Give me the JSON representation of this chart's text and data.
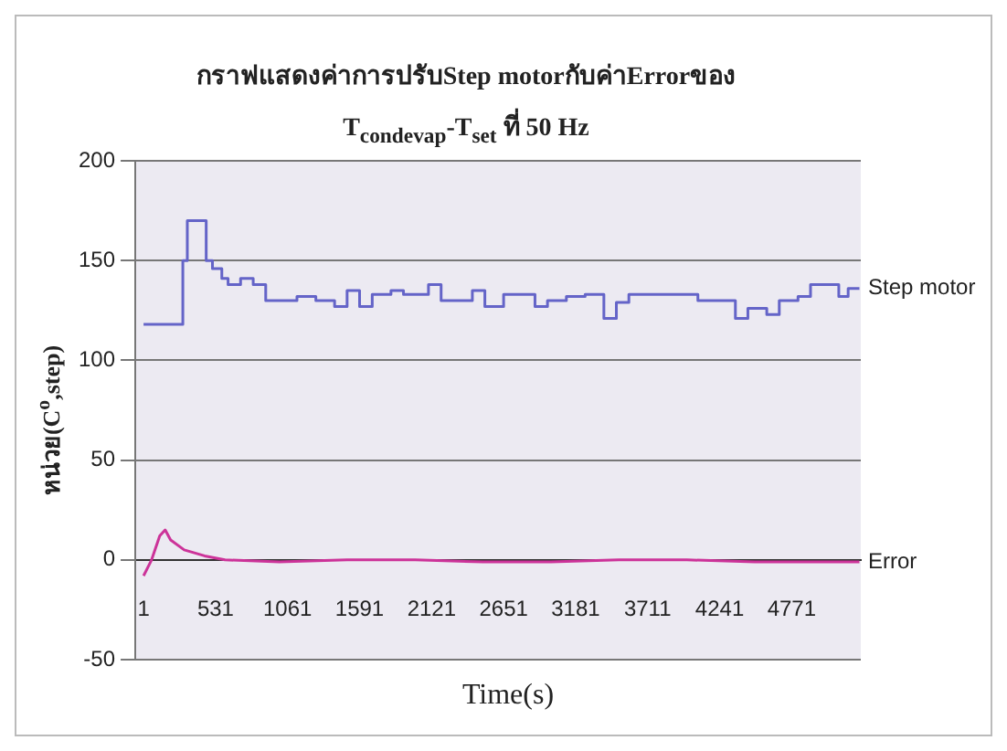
{
  "chart_data": {
    "type": "line",
    "title": "กราฟแสดงค่าการปรับStep motorกับค่าErrorของ",
    "subtitle": "T$_{condevap}$-T$_{set}$ ที่ 50 Hz",
    "xlabel": "Time(s)",
    "ylabel": "หน่วย(C$^{o}$,step)",
    "xlim": [
      -60,
      5280
    ],
    "xticks": [
      1,
      531,
      1061,
      1591,
      2121,
      2651,
      3181,
      3711,
      4241,
      4771
    ],
    "ylim": [
      -50,
      200
    ],
    "yticks": [
      -50,
      0,
      50,
      100,
      150,
      200
    ],
    "grid": "y",
    "legend": false,
    "series": [
      {
        "name": "Step motor",
        "type": "step",
        "color": "#6464c8",
        "x": [
          1,
          150,
          290,
          323,
          393,
          462,
          508,
          577,
          623,
          715,
          808,
          900,
          1084,
          1130,
          1269,
          1407,
          1499,
          1591,
          1684,
          1822,
          1914,
          2006,
          2098,
          2191,
          2329,
          2421,
          2513,
          2651,
          2790,
          2882,
          2974,
          3113,
          3251,
          3389,
          3481,
          3573,
          3988,
          4081,
          4219,
          4357,
          4449,
          4588,
          4680,
          4818,
          4910,
          5049,
          5118,
          5187,
          5270
        ],
        "values": [
          118,
          118,
          150,
          170,
          170,
          150,
          146,
          141,
          138,
          141,
          138,
          130,
          130,
          132,
          130,
          127,
          135,
          127,
          133,
          135,
          133,
          133,
          138,
          130,
          130,
          135,
          127,
          133,
          133,
          127,
          130,
          132,
          133,
          121,
          129,
          133,
          133,
          130,
          130,
          121,
          126,
          123,
          130,
          132,
          138,
          138,
          132,
          136,
          136
        ]
      },
      {
        "name": "Error",
        "type": "line",
        "color": "#cc3399",
        "x": [
          1,
          60,
          120,
          160,
          200,
          300,
          450,
          600,
          1000,
          1500,
          2000,
          2500,
          3000,
          3500,
          4000,
          4500,
          5270
        ],
        "values": [
          -8,
          0,
          12,
          15,
          10,
          5,
          2,
          0,
          -1,
          0,
          0,
          -1,
          -1,
          0,
          0,
          -1,
          -1
        ]
      }
    ]
  }
}
